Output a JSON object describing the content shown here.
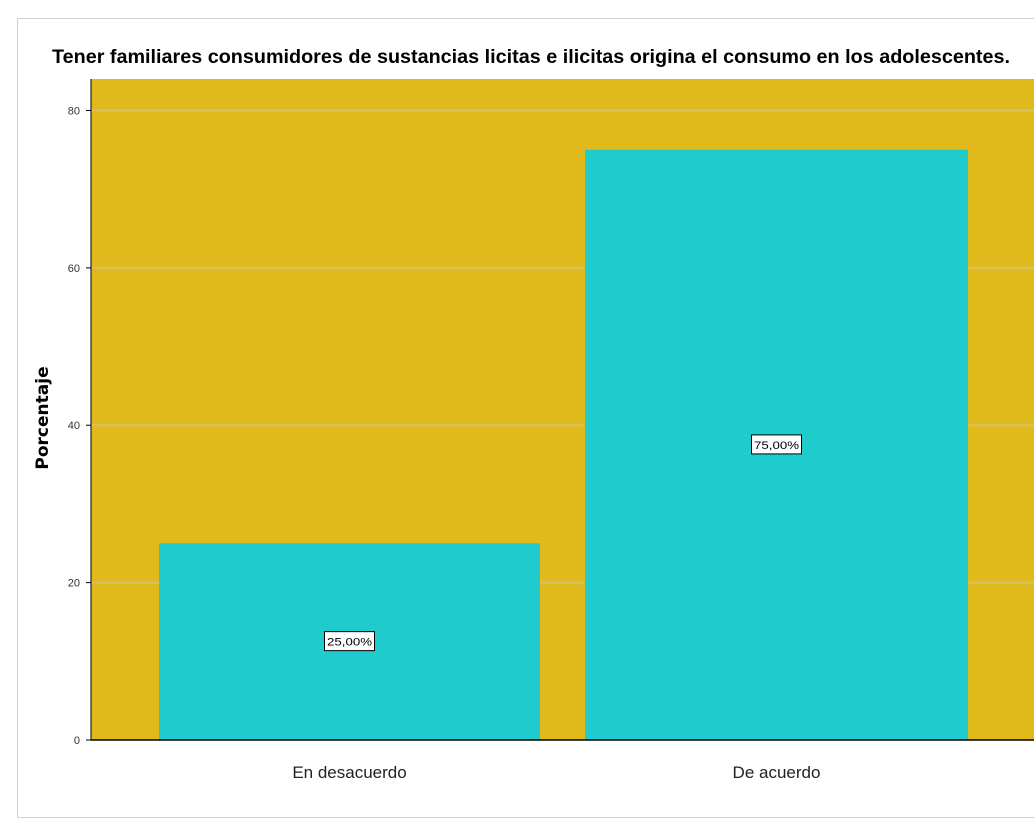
{
  "chart_data": {
    "type": "bar",
    "title": "Tener familiares consumidores de sustancias licitas e ilicitas origina el consumo en los adolescentes.",
    "xlabel": "",
    "ylabel": "Porcentaje",
    "categories": [
      "En desacuerdo",
      "De acuerdo"
    ],
    "values": [
      25,
      75
    ],
    "data_labels": [
      "25,00%",
      "75,00%"
    ],
    "ylim": [
      0,
      84
    ],
    "yticks": [
      0,
      20,
      40,
      60,
      80
    ],
    "grid": true,
    "legend": "none",
    "colors": {
      "plot_background": "#E0BA1C",
      "bar": "#1FCBCC",
      "grid": "#D7C168",
      "axis": "#000000"
    }
  }
}
